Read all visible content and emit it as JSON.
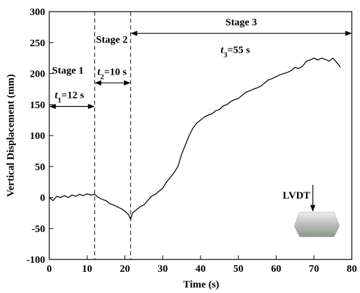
{
  "chart_data": {
    "type": "line",
    "x_label": "Time (s)",
    "y_label": "Vertical Displacement (mm)",
    "xlim": [
      0,
      80
    ],
    "ylim": [
      -100,
      300
    ],
    "xticks": [
      0,
      10,
      20,
      30,
      40,
      50,
      60,
      70,
      80
    ],
    "yticks": [
      -100,
      -50,
      0,
      50,
      100,
      150,
      200,
      250,
      300
    ],
    "grid": false,
    "reference_lines": [
      12,
      21.5
    ],
    "stages": [
      {
        "label": "Stage 1",
        "symbol": "t",
        "subscript": "1",
        "duration": "=12 s"
      },
      {
        "label": "Stage 2",
        "symbol": "t",
        "subscript": "2",
        "duration": "=10 s"
      },
      {
        "label": "Stage 3",
        "symbol": "t",
        "subscript": "3",
        "duration": "=55 s"
      }
    ],
    "inset_label": "LVDT",
    "series": [
      {
        "color": "#000000",
        "x": [
          0,
          1,
          2,
          3,
          4,
          5,
          6,
          7,
          8,
          9,
          10,
          11,
          12,
          13,
          14,
          15,
          16,
          17,
          18,
          19,
          20,
          21,
          21.5,
          22,
          23,
          24,
          25,
          26,
          27,
          28,
          29,
          30,
          31,
          32,
          33,
          34,
          35,
          36,
          37,
          38,
          39,
          40,
          41,
          42,
          43,
          44,
          45,
          46,
          47,
          48,
          49,
          50,
          51,
          52,
          53,
          54,
          55,
          56,
          57,
          58,
          59,
          60,
          61,
          62,
          63,
          64,
          65,
          66,
          67,
          68,
          69,
          70,
          71,
          72,
          73,
          74,
          75,
          76,
          77
        ],
        "values": [
          0,
          -5,
          2,
          0,
          3,
          0,
          4,
          2,
          5,
          3,
          6,
          4,
          5,
          0,
          -3,
          -5,
          -10,
          -12,
          -15,
          -18,
          -22,
          -28,
          -35,
          -25,
          -20,
          -15,
          -12,
          -5,
          2,
          5,
          10,
          15,
          25,
          32,
          40,
          50,
          70,
          85,
          100,
          112,
          120,
          125,
          130,
          133,
          135,
          140,
          142,
          148,
          150,
          155,
          158,
          160,
          165,
          170,
          172,
          175,
          177,
          180,
          185,
          190,
          192,
          195,
          198,
          200,
          202,
          205,
          210,
          208,
          212,
          220,
          222,
          225,
          222,
          225,
          223,
          220,
          225,
          218,
          210
        ]
      }
    ]
  }
}
